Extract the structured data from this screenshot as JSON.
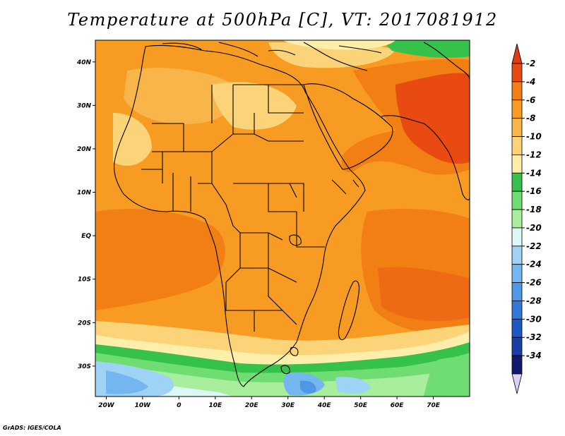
{
  "title": "Temperature at 500hPa [C], VT: 2017081912",
  "credit": "GrADS: IGES/COLA",
  "map": {
    "projection": "lat-lon",
    "lon_range": [
      -23,
      80
    ],
    "lat_range": [
      -37,
      45
    ],
    "lat_ticks": [
      {
        "lat": 40,
        "label": "40N"
      },
      {
        "lat": 30,
        "label": "30N"
      },
      {
        "lat": 20,
        "label": "20N"
      },
      {
        "lat": 10,
        "label": "10N"
      },
      {
        "lat": 0,
        "label": "EQ"
      },
      {
        "lat": -10,
        "label": "10S"
      },
      {
        "lat": -20,
        "label": "20S"
      },
      {
        "lat": -30,
        "label": "30S"
      }
    ],
    "lon_ticks": [
      {
        "lon": -20,
        "label": "20W"
      },
      {
        "lon": -10,
        "label": "10W"
      },
      {
        "lon": 0,
        "label": "0"
      },
      {
        "lon": 10,
        "label": "10E"
      },
      {
        "lon": 20,
        "label": "20E"
      },
      {
        "lon": 30,
        "label": "30E"
      },
      {
        "lon": 40,
        "label": "40E"
      },
      {
        "lon": 50,
        "label": "50E"
      },
      {
        "lon": 60,
        "label": "60E"
      },
      {
        "lon": 70,
        "label": "70E"
      }
    ]
  },
  "colorbar": {
    "bins": [
      {
        "color": "#e84a12",
        "label": "-2"
      },
      {
        "color": "#f17f14",
        "label": "-4"
      },
      {
        "color": "#f79b22",
        "label": "-6"
      },
      {
        "color": "#f7b54a",
        "label": "-8"
      },
      {
        "color": "#fbd47a",
        "label": "-10"
      },
      {
        "color": "#fdeeaa",
        "label": "-12"
      },
      {
        "color": "#36c24a",
        "label": "-14"
      },
      {
        "color": "#6fdd72",
        "label": "-16"
      },
      {
        "color": "#a8ee9c",
        "label": "-18"
      },
      {
        "color": "#dcf8f6",
        "label": "-20"
      },
      {
        "color": "#9fd3f5",
        "label": "-22"
      },
      {
        "color": "#74b6ef",
        "label": "-24"
      },
      {
        "color": "#4f98e4",
        "label": "-26"
      },
      {
        "color": "#3378d8",
        "label": "-28"
      },
      {
        "color": "#1e58c4",
        "label": "-30"
      },
      {
        "color": "#1a3ea4",
        "label": "-32"
      },
      {
        "color": "#111a6e",
        "label": "-34"
      }
    ],
    "top_arrow_color": "#e03a10",
    "bottom_arrow_color": "#dcd0f4"
  }
}
